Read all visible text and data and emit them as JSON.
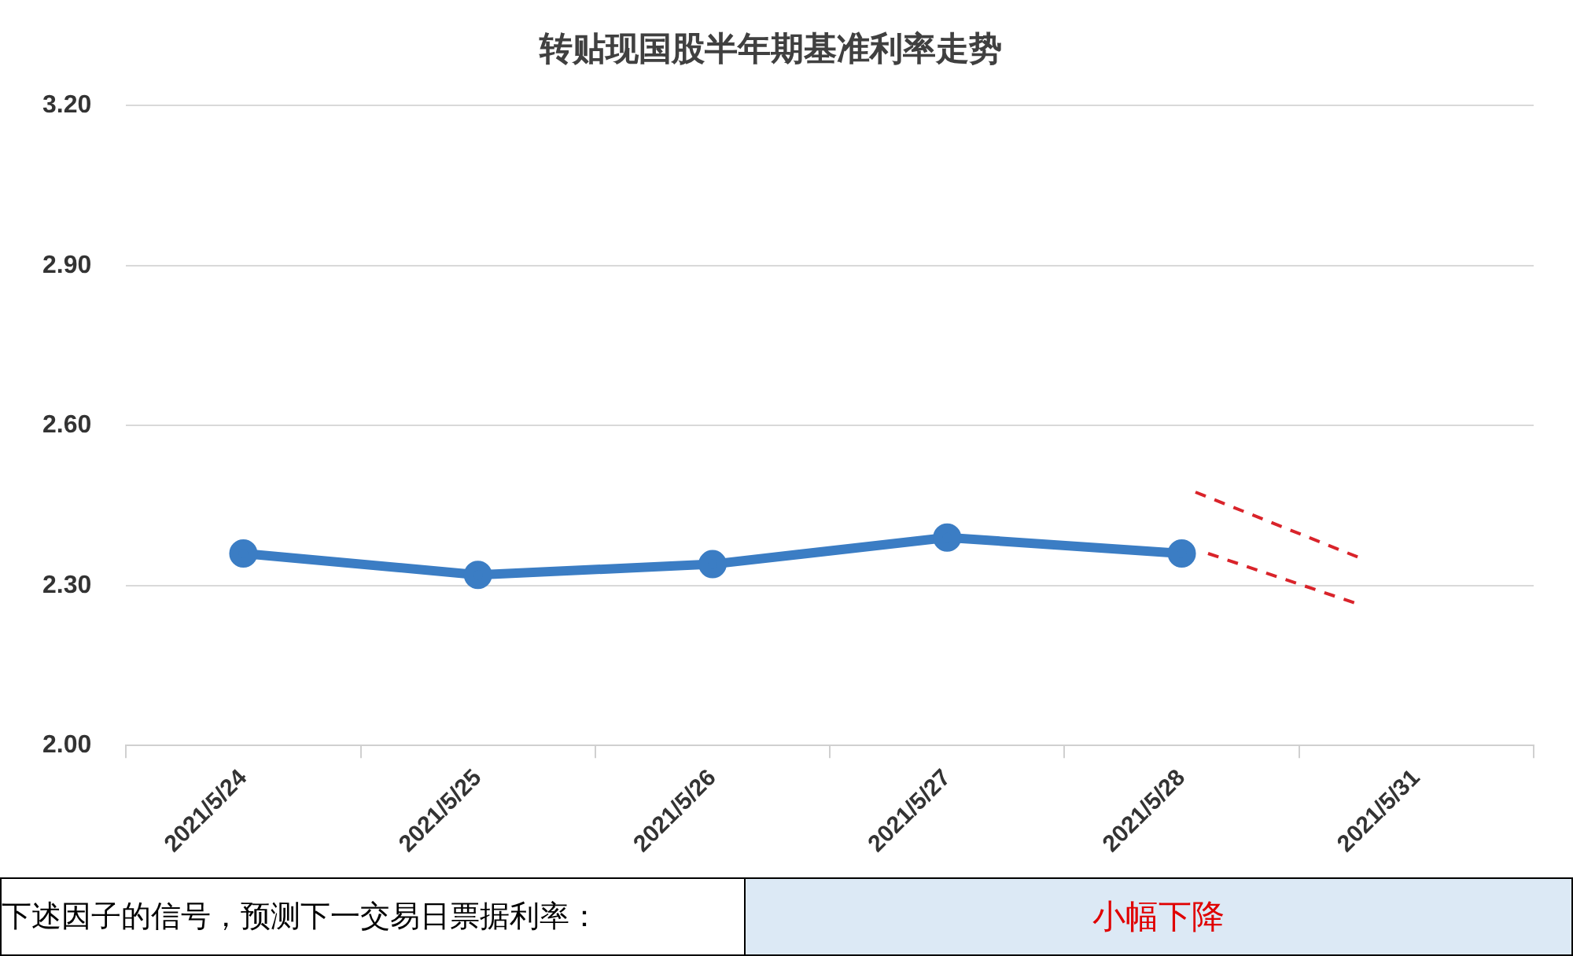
{
  "chart_data": {
    "type": "line",
    "title": "转贴现国股半年期基准利率走势",
    "categories": [
      "2021/5/24",
      "2021/5/25",
      "2021/5/26",
      "2021/5/27",
      "2021/5/28",
      "2021/5/31"
    ],
    "series": [
      {
        "color": "#3b7dc4",
        "values": [
          2.36,
          2.32,
          2.34,
          2.39,
          2.36,
          null
        ]
      }
    ],
    "ylim": [
      2.0,
      3.2
    ],
    "yticks": [
      {
        "value": 2.0,
        "label": "2.00"
      },
      {
        "value": 2.3,
        "label": "2.30"
      },
      {
        "value": 2.6,
        "label": "2.60"
      },
      {
        "value": 2.9,
        "label": "2.90"
      },
      {
        "value": 3.2,
        "label": "3.20"
      }
    ],
    "grid": "y",
    "legend": false,
    "marker": "circle",
    "line_style": "solid",
    "annotations": [
      "下述因子的信号，预测下一交易日票据利率：",
      "小幅下降"
    ]
  }
}
